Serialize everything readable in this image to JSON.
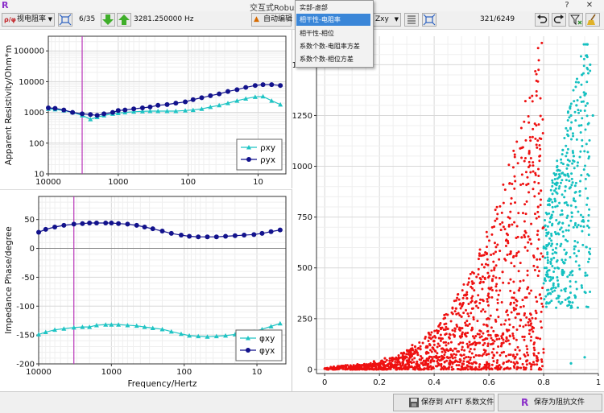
{
  "window": {
    "title": "交互式Robus",
    "app_icon": "R",
    "close_glyph": "✕",
    "help_glyph": "?"
  },
  "toolbar": {
    "mode_select": "视电阻率",
    "page_counter": "6/35",
    "frequency": "3281.250000 Hz",
    "auto_edit": "自动编辑",
    "component_select": "Zxy",
    "point_counter": "321/6249"
  },
  "menu": {
    "items": [
      "实部-虚部",
      "相干性-电阻率",
      "相干性-相位",
      "系数个数-电阻率方差",
      "系数个数-相位方差"
    ],
    "selected_index": 1
  },
  "colors": {
    "rxy": "#1fc4c4",
    "ryx": "#12128c",
    "marker": "#b833b8",
    "red_points": "#ee1111",
    "cyan_points": "#15c0c0",
    "selected_menu": "#3a86d8"
  },
  "bottom": {
    "save_atft": "保存到 ATFT 系数文件",
    "save_impedance": "保存为阻抗文件"
  },
  "chart_data": [
    {
      "type": "line",
      "ylabel": "Apparent Resistivity/Ohm*m",
      "yscale": "log",
      "xscale": "log",
      "x_reversed": true,
      "xlim": [
        10000,
        4
      ],
      "ylim": [
        10,
        300000
      ],
      "x_ticks": [
        "10000",
        "1000",
        "100",
        "10"
      ],
      "y_ticks": [
        "10",
        "100",
        "1000",
        "10000",
        "100000"
      ],
      "marker_x": 3281.25,
      "legend": "bottom-right",
      "series": [
        {
          "name": "ρxy",
          "x": [
            10000,
            8000,
            6000,
            4500,
            3281,
            2500,
            2000,
            1600,
            1200,
            1000,
            800,
            600,
            450,
            350,
            270,
            200,
            150,
            110,
            85,
            64,
            48,
            36,
            27,
            20,
            15,
            11,
            8.5,
            6.4,
            4.8
          ],
          "y": [
            1300,
            1250,
            1150,
            1000,
            800,
            600,
            700,
            800,
            900,
            950,
            1000,
            1050,
            1080,
            1100,
            1100,
            1100,
            1100,
            1150,
            1200,
            1300,
            1500,
            1700,
            2000,
            2400,
            2800,
            3200,
            3300,
            2400,
            1800
          ]
        },
        {
          "name": "ρyx",
          "x": [
            10000,
            8000,
            6000,
            4500,
            3281,
            2500,
            2000,
            1600,
            1200,
            1000,
            800,
            600,
            450,
            350,
            270,
            200,
            150,
            110,
            85,
            64,
            48,
            36,
            27,
            20,
            15,
            11,
            8.5,
            6.4,
            4.8
          ],
          "y": [
            1400,
            1350,
            1200,
            1000,
            900,
            850,
            800,
            900,
            1000,
            1150,
            1200,
            1300,
            1400,
            1500,
            1700,
            1800,
            2000,
            2200,
            2600,
            3000,
            3500,
            4000,
            4800,
            5500,
            6500,
            7500,
            8000,
            8000,
            7500
          ]
        }
      ]
    },
    {
      "type": "line",
      "xlabel": "Frequency/Hertz",
      "ylabel": "Impedance Phase/degree",
      "xscale": "log",
      "x_reversed": true,
      "xlim": [
        10000,
        4
      ],
      "ylim": [
        -200,
        90
      ],
      "x_ticks": [
        "10000",
        "1000",
        "100",
        "10"
      ],
      "y_ticks": [
        "-200",
        "-150",
        "-100",
        "-50",
        "0",
        "50"
      ],
      "marker_x": 3281.25,
      "legend": "bottom-right",
      "series": [
        {
          "name": "φxy",
          "x": [
            10000,
            8000,
            6000,
            4500,
            3281,
            2500,
            2000,
            1600,
            1200,
            1000,
            800,
            600,
            450,
            350,
            270,
            200,
            150,
            110,
            85,
            64,
            48,
            36,
            27,
            20,
            15,
            11,
            8.5,
            6.4,
            4.8
          ],
          "y": [
            -149,
            -145,
            -141,
            -139,
            -137,
            -136,
            -136,
            -133,
            -132,
            -132,
            -132,
            -133,
            -134,
            -136,
            -138,
            -140,
            -144,
            -148,
            -151,
            -152,
            -153,
            -152,
            -151,
            -149,
            -147,
            -144,
            -140,
            -135,
            -130
          ]
        },
        {
          "name": "φyx",
          "x": [
            10000,
            8000,
            6000,
            4500,
            3281,
            2500,
            2000,
            1600,
            1200,
            1000,
            800,
            600,
            450,
            350,
            270,
            200,
            150,
            110,
            85,
            64,
            48,
            36,
            27,
            20,
            15,
            11,
            8.5,
            6.4,
            4.8
          ],
          "y": [
            28,
            33,
            37,
            40,
            42,
            43,
            44,
            44,
            44,
            44,
            43,
            42,
            40,
            37,
            34,
            30,
            26,
            23,
            21,
            20,
            20,
            20,
            21,
            22,
            23,
            24,
            26,
            29,
            32
          ]
        }
      ]
    },
    {
      "type": "scatter",
      "xlim": [
        -0.03,
        1.0
      ],
      "ylim": [
        -20,
        1640
      ],
      "x_ticks": [
        "0",
        "0.2",
        "0.4",
        "0.6",
        "0.8",
        "1"
      ],
      "y_ticks": [
        "0",
        "250",
        "500",
        "750",
        "1000",
        "1250",
        "1500"
      ],
      "threshold_x": 0.8,
      "series": [
        {
          "name": "",
          "color": "#ee1111",
          "points": [
            [
              0.0,
              4
            ],
            [
              0.05,
              6
            ],
            [
              0.1,
              10
            ],
            [
              0.12,
              25
            ],
            [
              0.15,
              18
            ],
            [
              0.18,
              40
            ],
            [
              0.2,
              30
            ],
            [
              0.22,
              55
            ],
            [
              0.25,
              50
            ],
            [
              0.28,
              80
            ],
            [
              0.3,
              60
            ],
            [
              0.32,
              120
            ],
            [
              0.35,
              100
            ],
            [
              0.38,
              180
            ],
            [
              0.4,
              140
            ],
            [
              0.42,
              220
            ],
            [
              0.45,
              200
            ],
            [
              0.48,
              300
            ],
            [
              0.5,
              260
            ],
            [
              0.52,
              350
            ],
            [
              0.55,
              330
            ],
            [
              0.58,
              430
            ],
            [
              0.6,
              400
            ],
            [
              0.62,
              500
            ],
            [
              0.65,
              480
            ],
            [
              0.68,
              580
            ],
            [
              0.7,
              560
            ],
            [
              0.72,
              650
            ],
            [
              0.75,
              640
            ],
            [
              0.78,
              800
            ],
            [
              0.79,
              880
            ],
            [
              0.8,
              700
            ]
          ]
        },
        {
          "name": "",
          "color": "#15c0c0",
          "points": [
            [
              0.81,
              500
            ],
            [
              0.82,
              620
            ],
            [
              0.83,
              760
            ],
            [
              0.84,
              880
            ],
            [
              0.85,
              1000
            ],
            [
              0.86,
              950
            ],
            [
              0.87,
              1080
            ],
            [
              0.88,
              900
            ],
            [
              0.89,
              1150
            ],
            [
              0.9,
              1250
            ],
            [
              0.91,
              1050
            ],
            [
              0.92,
              1300
            ],
            [
              0.93,
              1200
            ],
            [
              0.94,
              1450
            ],
            [
              0.95,
              1350
            ],
            [
              0.96,
              1600
            ],
            [
              0.97,
              1500
            ],
            [
              0.98,
              1250
            ],
            [
              0.9,
              30
            ],
            [
              0.95,
              60
            ]
          ]
        }
      ]
    }
  ]
}
